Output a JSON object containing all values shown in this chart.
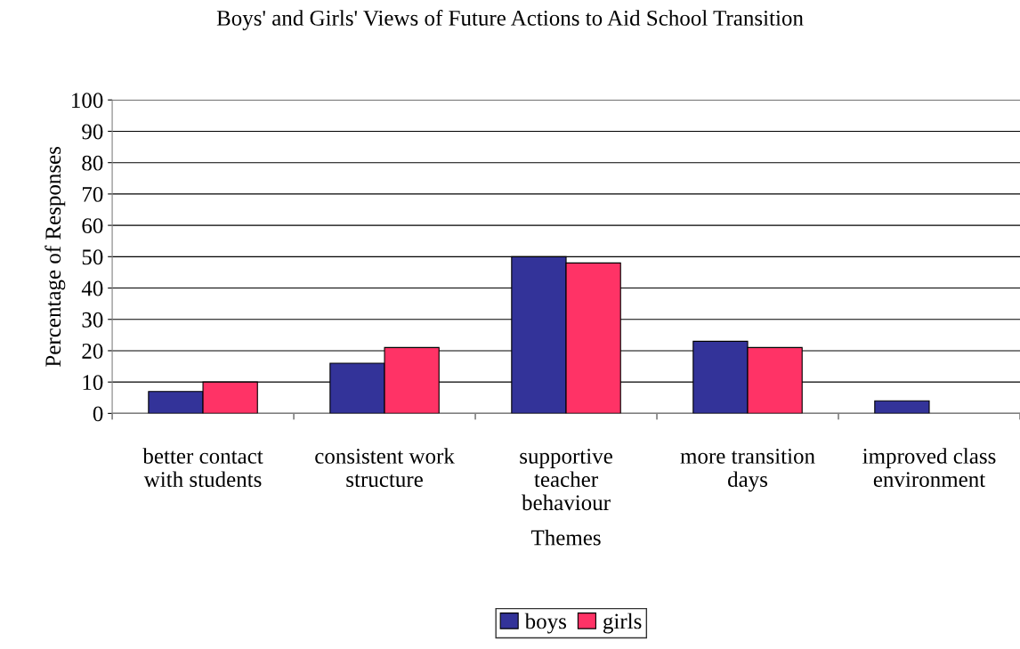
{
  "chart_data": {
    "type": "bar",
    "title": "Boys' and Girls' Views of Future Actions to Aid School Transition",
    "xlabel": "Themes",
    "ylabel": "Percentage of Responses",
    "categories": [
      "better contact\nwith students",
      "consistent work\nstructure",
      "supportive\nteacher\nbehaviour",
      "more transition\ndays",
      "improved class\nenvironment"
    ],
    "series": [
      {
        "name": "boys",
        "color": "#333399",
        "values": [
          7,
          16,
          50,
          23,
          4
        ]
      },
      {
        "name": "girls",
        "color": "#ff3366",
        "values": [
          10,
          21,
          48,
          21,
          0
        ]
      }
    ],
    "ylim": [
      0,
      100
    ],
    "yticks": [
      0,
      10,
      20,
      30,
      40,
      50,
      60,
      70,
      80,
      90,
      100
    ],
    "grid": "y",
    "legend": "bottom"
  }
}
